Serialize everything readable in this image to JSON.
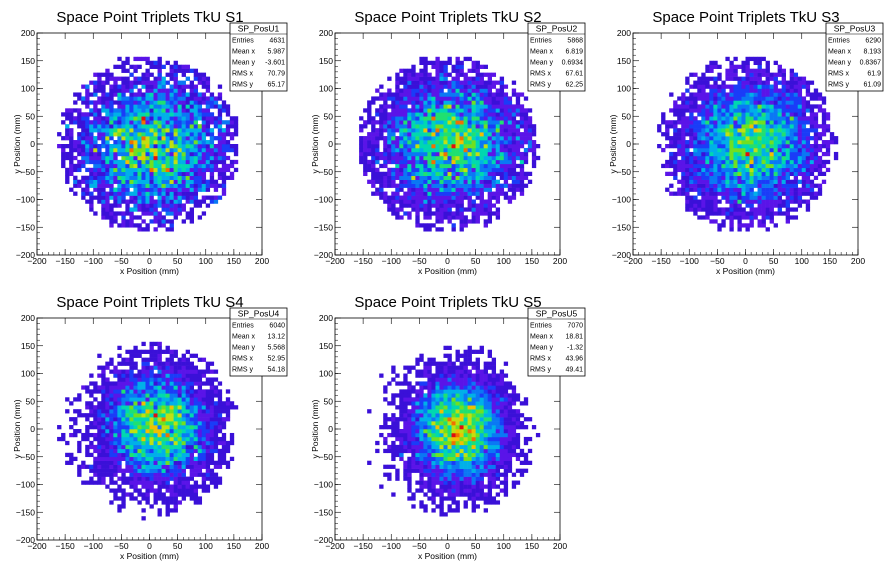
{
  "chart_data": [
    {
      "type": "heatmap",
      "title": "Space Point Triplets TkU S1",
      "xlabel": "x Position (mm)",
      "ylabel": "y Position (mm)",
      "xlim": [
        -200,
        200
      ],
      "ylim": [
        -200,
        200
      ],
      "xticks": [
        "−200",
        "−150",
        "−100",
        "−50",
        "0",
        "50",
        "100",
        "150",
        "200"
      ],
      "yticks": [
        "−200",
        "−150",
        "−100",
        "−50",
        "0",
        "50",
        "100",
        "150",
        "200"
      ],
      "stats": {
        "name": "SP_PosU1",
        "rows": [
          {
            "label": "Entries",
            "value": "4631"
          },
          {
            "label": "Mean x",
            "value": "5.987"
          },
          {
            "label": "Mean y",
            "value": "-3.601"
          },
          {
            "label": "RMS x",
            "value": "70.79"
          },
          {
            "label": "RMS y",
            "value": "65.17"
          }
        ]
      },
      "distribution": {
        "entries": 4631,
        "mean_x": 5.987,
        "mean_y": -3.601,
        "rms_x": 70.79,
        "rms_y": 65.17,
        "radius": 160
      }
    },
    {
      "type": "heatmap",
      "title": "Space Point Triplets TkU S2",
      "xlabel": "x Position (mm)",
      "ylabel": "y Position (mm)",
      "xlim": [
        -200,
        200
      ],
      "ylim": [
        -200,
        200
      ],
      "xticks": [
        "−200",
        "−150",
        "−100",
        "−50",
        "0",
        "50",
        "100",
        "150",
        "200"
      ],
      "yticks": [
        "−200",
        "−150",
        "−100",
        "−50",
        "0",
        "50",
        "100",
        "150",
        "200"
      ],
      "stats": {
        "name": "SP_PosU2",
        "rows": [
          {
            "label": "Entries",
            "value": "5868"
          },
          {
            "label": "Mean x",
            "value": "6.819"
          },
          {
            "label": "Mean y",
            "value": "0.6934"
          },
          {
            "label": "RMS x",
            "value": "67.61"
          },
          {
            "label": "RMS y",
            "value": "62.25"
          }
        ]
      },
      "distribution": {
        "entries": 5868,
        "mean_x": 6.819,
        "mean_y": 0.6934,
        "rms_x": 67.61,
        "rms_y": 62.25,
        "radius": 160
      }
    },
    {
      "type": "heatmap",
      "title": "Space Point Triplets TkU S3",
      "xlabel": "x Position (mm)",
      "ylabel": "y Position (mm)",
      "xlim": [
        -200,
        200
      ],
      "ylim": [
        -200,
        200
      ],
      "xticks": [
        "−200",
        "−150",
        "−100",
        "−50",
        "0",
        "50",
        "100",
        "150",
        "200"
      ],
      "yticks": [
        "−200",
        "−150",
        "−100",
        "−50",
        "0",
        "50",
        "100",
        "150",
        "200"
      ],
      "stats": {
        "name": "SP_PosU3",
        "rows": [
          {
            "label": "Entries",
            "value": "6290"
          },
          {
            "label": "Mean x",
            "value": "8.193"
          },
          {
            "label": "Mean y",
            "value": "0.8367"
          },
          {
            "label": "RMS x",
            "value": "61.9"
          },
          {
            "label": "RMS y",
            "value": "61.09"
          }
        ]
      },
      "distribution": {
        "entries": 6290,
        "mean_x": 8.193,
        "mean_y": 0.8367,
        "rms_x": 61.9,
        "rms_y": 61.09,
        "radius": 160
      }
    },
    {
      "type": "heatmap",
      "title": "Space Point Triplets TkU S4",
      "xlabel": "x Position (mm)",
      "ylabel": "y Position (mm)",
      "xlim": [
        -200,
        200
      ],
      "ylim": [
        -200,
        200
      ],
      "xticks": [
        "−200",
        "−150",
        "−100",
        "−50",
        "0",
        "50",
        "100",
        "150",
        "200"
      ],
      "yticks": [
        "−200",
        "−150",
        "−100",
        "−50",
        "0",
        "50",
        "100",
        "150",
        "200"
      ],
      "stats": {
        "name": "SP_PosU4",
        "rows": [
          {
            "label": "Entries",
            "value": "6040"
          },
          {
            "label": "Mean x",
            "value": "13.12"
          },
          {
            "label": "Mean y",
            "value": "5.568"
          },
          {
            "label": "RMS x",
            "value": "52.95"
          },
          {
            "label": "RMS y",
            "value": "54.18"
          }
        ]
      },
      "distribution": {
        "entries": 6040,
        "mean_x": 13.12,
        "mean_y": 5.568,
        "rms_x": 52.95,
        "rms_y": 54.18,
        "radius": 160
      }
    },
    {
      "type": "heatmap",
      "title": "Space Point Triplets TkU S5",
      "xlabel": "x Position (mm)",
      "ylabel": "y Position (mm)",
      "xlim": [
        -200,
        200
      ],
      "ylim": [
        -200,
        200
      ],
      "xticks": [
        "−200",
        "−150",
        "−100",
        "−50",
        "0",
        "50",
        "100",
        "150",
        "200"
      ],
      "yticks": [
        "−200",
        "−150",
        "−100",
        "−50",
        "0",
        "50",
        "100",
        "150",
        "200"
      ],
      "stats": {
        "name": "SP_PosU5",
        "rows": [
          {
            "label": "Entries",
            "value": "7070"
          },
          {
            "label": "Mean x",
            "value": "18.81"
          },
          {
            "label": "Mean y",
            "value": "-1.32"
          },
          {
            "label": "RMS x",
            "value": "43.96"
          },
          {
            "label": "RMS y",
            "value": "49.41"
          }
        ]
      },
      "distribution": {
        "entries": 7070,
        "mean_x": 18.81,
        "mean_y": -1.32,
        "rms_x": 43.96,
        "rms_y": 49.41,
        "radius": 160
      }
    }
  ],
  "colors": {
    "palette": [
      "#3a10d8",
      "#5a14e8",
      "#1a3cf8",
      "#0a78f4",
      "#00b0e8",
      "#00d8b0",
      "#20e070",
      "#70e020",
      "#c0e010",
      "#f0c000",
      "#f07000",
      "#e01010"
    ],
    "frame": "#000000",
    "background": "#ffffff"
  }
}
